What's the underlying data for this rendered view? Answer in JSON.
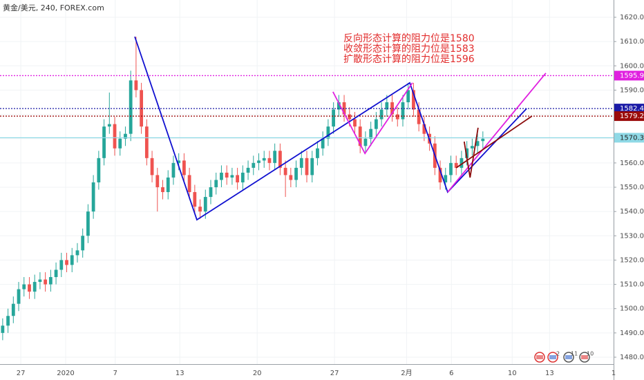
{
  "chart_data": {
    "type": "candlestick",
    "title": "黄金/美元, 240, FOREX.com",
    "annotations": [
      "反向形态计算的阻力位是1580",
      "收敛形态计算的阻力位是1583",
      "扩散形态计算的阻力位是1596"
    ],
    "event_labels": [
      "2",
      "11",
      "10"
    ],
    "up_color": "#26a69a",
    "down_color": "#ef5350",
    "xlim": [
      -0.5,
      114.5
    ],
    "xticks": [
      {
        "value": 3.4,
        "label": "27"
      },
      {
        "value": 11.8,
        "label": "2020"
      },
      {
        "value": 21.1,
        "label": "7"
      },
      {
        "value": 33.2,
        "label": "13"
      },
      {
        "value": 47.7,
        "label": "20"
      },
      {
        "value": 62.2,
        "label": "27"
      },
      {
        "value": 75.7,
        "label": "2月"
      },
      {
        "value": 84.1,
        "label": "6"
      },
      {
        "value": 95.5,
        "label": "10"
      },
      {
        "value": 102.5,
        "label": "13"
      },
      {
        "value": 114.5,
        "label": "1"
      }
    ],
    "ylim": [
      1480,
      1620
    ],
    "yticks": [
      {
        "value": 1480,
        "label": "1480.00"
      },
      {
        "value": 1490,
        "label": "1490.00"
      },
      {
        "value": 1500,
        "label": "1500.00"
      },
      {
        "value": 1510,
        "label": "1510.00"
      },
      {
        "value": 1520,
        "label": "1520.00"
      },
      {
        "value": 1530,
        "label": "1530.00"
      },
      {
        "value": 1540,
        "label": "1540.00"
      },
      {
        "value": 1550,
        "label": "1550.00"
      },
      {
        "value": 1560,
        "label": "1560.00"
      },
      {
        "value": 1570,
        "label": "1570.00"
      },
      {
        "value": 1580,
        "label": "1580.00"
      },
      {
        "value": 1590,
        "label": "1590.00"
      },
      {
        "value": 1600,
        "label": "1600.00"
      },
      {
        "value": 1610,
        "label": "1610.00"
      },
      {
        "value": 1620,
        "label": "1620.00"
      }
    ],
    "open": [
      1490,
      1493,
      1497,
      1502,
      1508,
      1510,
      1507,
      1511,
      1512,
      1510,
      1513,
      1516,
      1520,
      1518,
      1522,
      1524,
      1530,
      1540,
      1552,
      1562,
      1575,
      1576,
      1566,
      1570,
      1572,
      1594,
      1590,
      1575,
      1562,
      1555,
      1550,
      1548,
      1554,
      1560,
      1561,
      1555,
      1548,
      1542,
      1540,
      1546,
      1550,
      1553,
      1556,
      1554,
      1555,
      1552,
      1556,
      1558,
      1560,
      1561,
      1562,
      1560,
      1565,
      1558,
      1555,
      1553,
      1558,
      1562,
      1555,
      1562,
      1566,
      1570,
      1575,
      1582,
      1585,
      1580,
      1578,
      1575,
      1567,
      1570,
      1574,
      1578,
      1582,
      1585,
      1580,
      1578,
      1585,
      1590,
      1582,
      1576,
      1572,
      1568,
      1558,
      1552,
      1555,
      1560,
      1558,
      1562,
      1566,
      1567,
      1569
    ],
    "high": [
      1496,
      1500,
      1505,
      1511,
      1513,
      1513,
      1514,
      1515,
      1515,
      1516,
      1519,
      1523,
      1523,
      1525,
      1527,
      1533,
      1543,
      1555,
      1565,
      1578,
      1589,
      1579,
      1573,
      1575,
      1598,
      1612,
      1593,
      1578,
      1565,
      1558,
      1553,
      1557,
      1563,
      1564,
      1564,
      1558,
      1551,
      1545,
      1549,
      1553,
      1556,
      1559,
      1559,
      1558,
      1558,
      1559,
      1561,
      1563,
      1564,
      1565,
      1565,
      1568,
      1568,
      1561,
      1558,
      1561,
      1565,
      1565,
      1565,
      1569,
      1573,
      1578,
      1585,
      1588,
      1588,
      1583,
      1581,
      1578,
      1573,
      1577,
      1581,
      1585,
      1588,
      1588,
      1583,
      1588,
      1593,
      1593,
      1585,
      1579,
      1575,
      1571,
      1561,
      1558,
      1563,
      1563,
      1565,
      1569,
      1570,
      1572,
      1573
    ],
    "low": [
      1487,
      1490,
      1494,
      1499,
      1505,
      1504,
      1504,
      1508,
      1507,
      1507,
      1510,
      1513,
      1515,
      1515,
      1519,
      1521,
      1527,
      1537,
      1549,
      1559,
      1572,
      1563,
      1563,
      1567,
      1569,
      1587,
      1572,
      1559,
      1552,
      1540,
      1545,
      1545,
      1551,
      1557,
      1552,
      1545,
      1539,
      1537,
      1537,
      1543,
      1547,
      1550,
      1551,
      1551,
      1549,
      1549,
      1553,
      1555,
      1557,
      1558,
      1557,
      1557,
      1555,
      1546,
      1550,
      1550,
      1555,
      1552,
      1552,
      1559,
      1563,
      1567,
      1572,
      1579,
      1577,
      1575,
      1572,
      1564,
      1564,
      1567,
      1571,
      1575,
      1579,
      1577,
      1575,
      1575,
      1582,
      1579,
      1573,
      1569,
      1565,
      1555,
      1549,
      1549,
      1552,
      1555,
      1555,
      1559,
      1563,
      1564,
      1566
    ],
    "close": [
      1493,
      1497,
      1502,
      1508,
      1510,
      1507,
      1511,
      1512,
      1510,
      1513,
      1516,
      1520,
      1518,
      1522,
      1524,
      1530,
      1540,
      1552,
      1562,
      1575,
      1576,
      1566,
      1570,
      1572,
      1594,
      1590,
      1575,
      1562,
      1555,
      1550,
      1548,
      1554,
      1560,
      1561,
      1555,
      1548,
      1542,
      1540,
      1546,
      1550,
      1553,
      1556,
      1554,
      1555,
      1552,
      1556,
      1558,
      1560,
      1561,
      1562,
      1560,
      1565,
      1558,
      1555,
      1553,
      1558,
      1562,
      1555,
      1562,
      1566,
      1570,
      1575,
      1582,
      1585,
      1580,
      1578,
      1575,
      1567,
      1570,
      1574,
      1578,
      1582,
      1585,
      1580,
      1578,
      1585,
      1590,
      1582,
      1576,
      1572,
      1568,
      1558,
      1552,
      1555,
      1560,
      1558,
      1562,
      1566,
      1567,
      1569,
      1570
    ],
    "price_lines": [
      {
        "value": 1595.97,
        "color": "#e020e0",
        "dash": true,
        "text_color": "#ffffff"
      },
      {
        "value": 1582.4,
        "label": "1582.40",
        "color": "#1a1aa6",
        "dash": true,
        "text_color": "#ffffff"
      },
      {
        "value": 1579.29,
        "color": "#9b0b0b",
        "dash": true,
        "text_color": "#ffffff"
      },
      {
        "value": 1570.39,
        "color": "#8fd9e6",
        "dash": false,
        "text_color": "#222222"
      }
    ],
    "overlays": [
      {
        "color": "#1010d0",
        "x": [
          24.76,
          36.4,
          76.3,
          83.4,
          98.2
        ],
        "y": [
          1612,
          1536.6,
          1593,
          1548,
          1582.4
        ]
      },
      {
        "color": "#e020e0",
        "x": [
          61.9,
          67.9,
          76.8
        ],
        "y": [
          1589.3,
          1563.9,
          1593
        ]
      },
      {
        "color": "#e020e0",
        "x": [
          83.4,
          101.8
        ],
        "y": [
          1548,
          1597
        ]
      },
      {
        "color": "#8b0a0a",
        "x": [
          85.0,
          99.2
        ],
        "y": [
          1558,
          1579.3
        ]
      },
      {
        "color": "#8b0a0a",
        "x": [
          86.5,
          87.6,
          89.1
        ],
        "y": [
          1568.8,
          1554,
          1574.5
        ]
      }
    ]
  }
}
